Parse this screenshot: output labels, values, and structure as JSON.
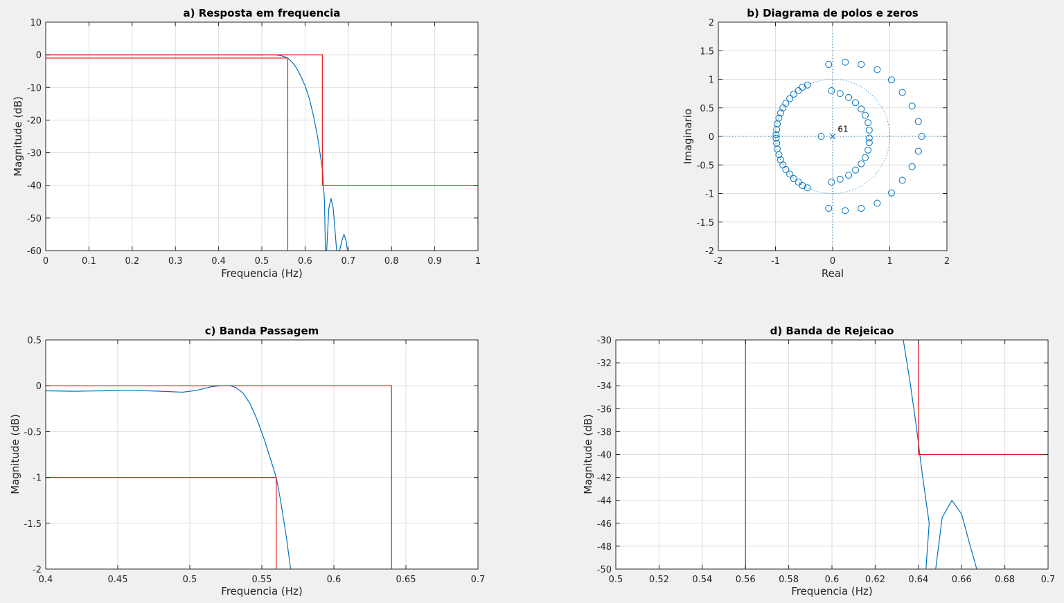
{
  "figure": {
    "colors": {
      "response": "#0072bd",
      "mask": "#e41a1c",
      "grid": "#dedede",
      "background": "#f0f0f0",
      "axes_bg": "#ffffff"
    }
  },
  "chart_data": [
    {
      "id": "a",
      "type": "line",
      "title": "a) Resposta em frequencia",
      "xlabel": "Frequencia (Hz)",
      "ylabel": "Magnitude (dB)",
      "xlim": [
        0,
        1
      ],
      "ylim": [
        -60,
        10
      ],
      "xticks": [
        0,
        0.1,
        0.2,
        0.3,
        0.4,
        0.5,
        0.6,
        0.7,
        0.8,
        0.9,
        1
      ],
      "yticks": [
        10,
        0,
        -10,
        -20,
        -30,
        -40,
        -50,
        -60
      ],
      "grid": true,
      "series": [
        {
          "role": "response",
          "x": [
            0,
            0.4,
            0.5,
            0.53,
            0.545,
            0.555,
            0.56,
            0.57,
            0.58,
            0.59,
            0.6,
            0.61,
            0.62,
            0.63,
            0.64,
            0.645,
            0.647,
            0.65,
            0.655,
            0.66,
            0.665,
            0.67,
            0.673,
            0.677,
            0.68,
            0.685,
            0.69,
            0.695,
            0.698,
            0.7
          ],
          "y": [
            -0.05,
            -0.05,
            -0.07,
            0,
            -0.3,
            -0.7,
            -1,
            -2.2,
            -4,
            -6.5,
            -9.5,
            -13.5,
            -19,
            -26,
            -35,
            -45,
            -60,
            -60,
            -47,
            -44,
            -47,
            -55,
            -60,
            -60,
            -60,
            -57,
            -55,
            -57,
            -60,
            -60
          ]
        },
        {
          "role": "mask",
          "x": [
            0,
            0.64,
            0.64,
            1
          ],
          "y": [
            0,
            0,
            -40,
            -40
          ]
        },
        {
          "role": "mask",
          "x": [
            0,
            0.56,
            0.56
          ],
          "y": [
            -1,
            -1,
            -60
          ]
        }
      ]
    },
    {
      "id": "b",
      "type": "scatter",
      "title": "b) Diagrama de polos e zeros",
      "xlabel": "Real",
      "ylabel": "Imaginario",
      "xlim": [
        -2,
        2
      ],
      "ylim": [
        -2,
        2
      ],
      "xticks": [
        -2,
        -1,
        0,
        1,
        2
      ],
      "yticks": [
        2,
        1.5,
        1,
        0.5,
        0,
        -0.5,
        -1,
        -1.5,
        -2
      ],
      "grid": true,
      "unit_circle": true,
      "poles": [
        [
          0,
          0
        ]
      ],
      "pole_annotation": "61",
      "zeros": [
        [
          -0.44,
          0.9
        ],
        [
          -0.53,
          0.86
        ],
        [
          -0.6,
          0.8
        ],
        [
          -0.68,
          0.74
        ],
        [
          -0.75,
          0.66
        ],
        [
          -0.82,
          0.58
        ],
        [
          -0.87,
          0.5
        ],
        [
          -0.91,
          0.41
        ],
        [
          -0.94,
          0.32
        ],
        [
          -0.97,
          0.22
        ],
        [
          -0.98,
          0.12
        ],
        [
          -0.99,
          0.03
        ],
        [
          -0.44,
          -0.9
        ],
        [
          -0.53,
          -0.86
        ],
        [
          -0.6,
          -0.8
        ],
        [
          -0.68,
          -0.74
        ],
        [
          -0.75,
          -0.66
        ],
        [
          -0.82,
          -0.58
        ],
        [
          -0.87,
          -0.5
        ],
        [
          -0.91,
          -0.41
        ],
        [
          -0.94,
          -0.32
        ],
        [
          -0.97,
          -0.22
        ],
        [
          -0.98,
          -0.12
        ],
        [
          -0.99,
          -0.03
        ],
        [
          -0.02,
          0.8
        ],
        [
          0.13,
          0.75
        ],
        [
          0.28,
          0.68
        ],
        [
          0.4,
          0.59
        ],
        [
          0.5,
          0.48
        ],
        [
          0.57,
          0.37
        ],
        [
          0.62,
          0.24
        ],
        [
          0.64,
          0.11
        ],
        [
          0.64,
          -0.03
        ],
        [
          -0.02,
          -0.8
        ],
        [
          0.13,
          -0.75
        ],
        [
          0.28,
          -0.68
        ],
        [
          0.4,
          -0.59
        ],
        [
          0.5,
          -0.48
        ],
        [
          0.57,
          -0.37
        ],
        [
          0.62,
          -0.24
        ],
        [
          0.64,
          -0.11
        ],
        [
          -0.2,
          0
        ],
        [
          -0.07,
          1.26
        ],
        [
          0.22,
          1.3
        ],
        [
          0.5,
          1.26
        ],
        [
          0.78,
          1.17
        ],
        [
          1.03,
          0.99
        ],
        [
          1.22,
          0.77
        ],
        [
          1.39,
          0.53
        ],
        [
          1.5,
          0.26
        ],
        [
          1.56,
          0
        ],
        [
          -0.07,
          -1.26
        ],
        [
          0.22,
          -1.3
        ],
        [
          0.5,
          -1.26
        ],
        [
          0.78,
          -1.17
        ],
        [
          1.03,
          -0.99
        ],
        [
          1.22,
          -0.77
        ],
        [
          1.39,
          -0.53
        ],
        [
          1.5,
          -0.26
        ]
      ]
    },
    {
      "id": "c",
      "type": "line",
      "title": "c) Banda Passagem",
      "xlabel": "Frequencia (Hz)",
      "ylabel": "Magnitude (dB)",
      "xlim": [
        0.4,
        0.7
      ],
      "ylim": [
        -2,
        0.5
      ],
      "xticks": [
        0.4,
        0.45,
        0.5,
        0.55,
        0.6,
        0.65,
        0.7
      ],
      "yticks": [
        0.5,
        0,
        -0.5,
        -1,
        -1.5,
        -2
      ],
      "grid": true,
      "series": [
        {
          "role": "response",
          "x": [
            0.4,
            0.42,
            0.44,
            0.46,
            0.48,
            0.495,
            0.505,
            0.515,
            0.522,
            0.528,
            0.532,
            0.537,
            0.542,
            0.547,
            0.552,
            0.557,
            0.56,
            0.563,
            0.567,
            0.57
          ],
          "y": [
            -0.055,
            -0.06,
            -0.055,
            -0.05,
            -0.06,
            -0.07,
            -0.05,
            -0.01,
            0,
            0,
            -0.02,
            -0.08,
            -0.2,
            -0.38,
            -0.6,
            -0.85,
            -1,
            -1.25,
            -1.65,
            -2
          ]
        },
        {
          "role": "mask",
          "x": [
            0.4,
            0.64,
            0.64
          ],
          "y": [
            0,
            0,
            -2
          ]
        },
        {
          "role": "mask",
          "x": [
            0.4,
            0.56,
            0.56
          ],
          "y": [
            -1,
            -1,
            -2
          ]
        }
      ]
    },
    {
      "id": "d",
      "type": "line",
      "title": "d) Banda de Rejeicao",
      "xlabel": "Frequencia (Hz)",
      "ylabel": "Magnitude (dB)",
      "xlim": [
        0.5,
        0.7
      ],
      "ylim": [
        -50,
        -30
      ],
      "xticks": [
        0.5,
        0.52,
        0.54,
        0.56,
        0.58,
        0.6,
        0.62,
        0.64,
        0.66,
        0.68,
        0.7
      ],
      "yticks": [
        -30,
        -32,
        -34,
        -36,
        -38,
        -40,
        -42,
        -44,
        -46,
        -48,
        -50
      ],
      "grid": true,
      "series": [
        {
          "role": "response",
          "x": [
            0.633,
            0.636,
            0.639,
            0.642,
            0.645,
            0.6435
          ],
          "y": [
            -30,
            -33.5,
            -37.5,
            -42,
            -46,
            -50
          ]
        },
        {
          "role": "response",
          "x": [
            0.648,
            0.651,
            0.6555,
            0.66,
            0.664,
            0.667
          ],
          "y": [
            -50,
            -45.5,
            -44,
            -45.2,
            -48,
            -50
          ]
        },
        {
          "role": "mask",
          "x": [
            0.64,
            0.64,
            0.7
          ],
          "y": [
            -30,
            -40,
            -40
          ]
        },
        {
          "role": "mask",
          "x": [
            0.56,
            0.56
          ],
          "y": [
            -30,
            -50
          ]
        }
      ]
    }
  ]
}
